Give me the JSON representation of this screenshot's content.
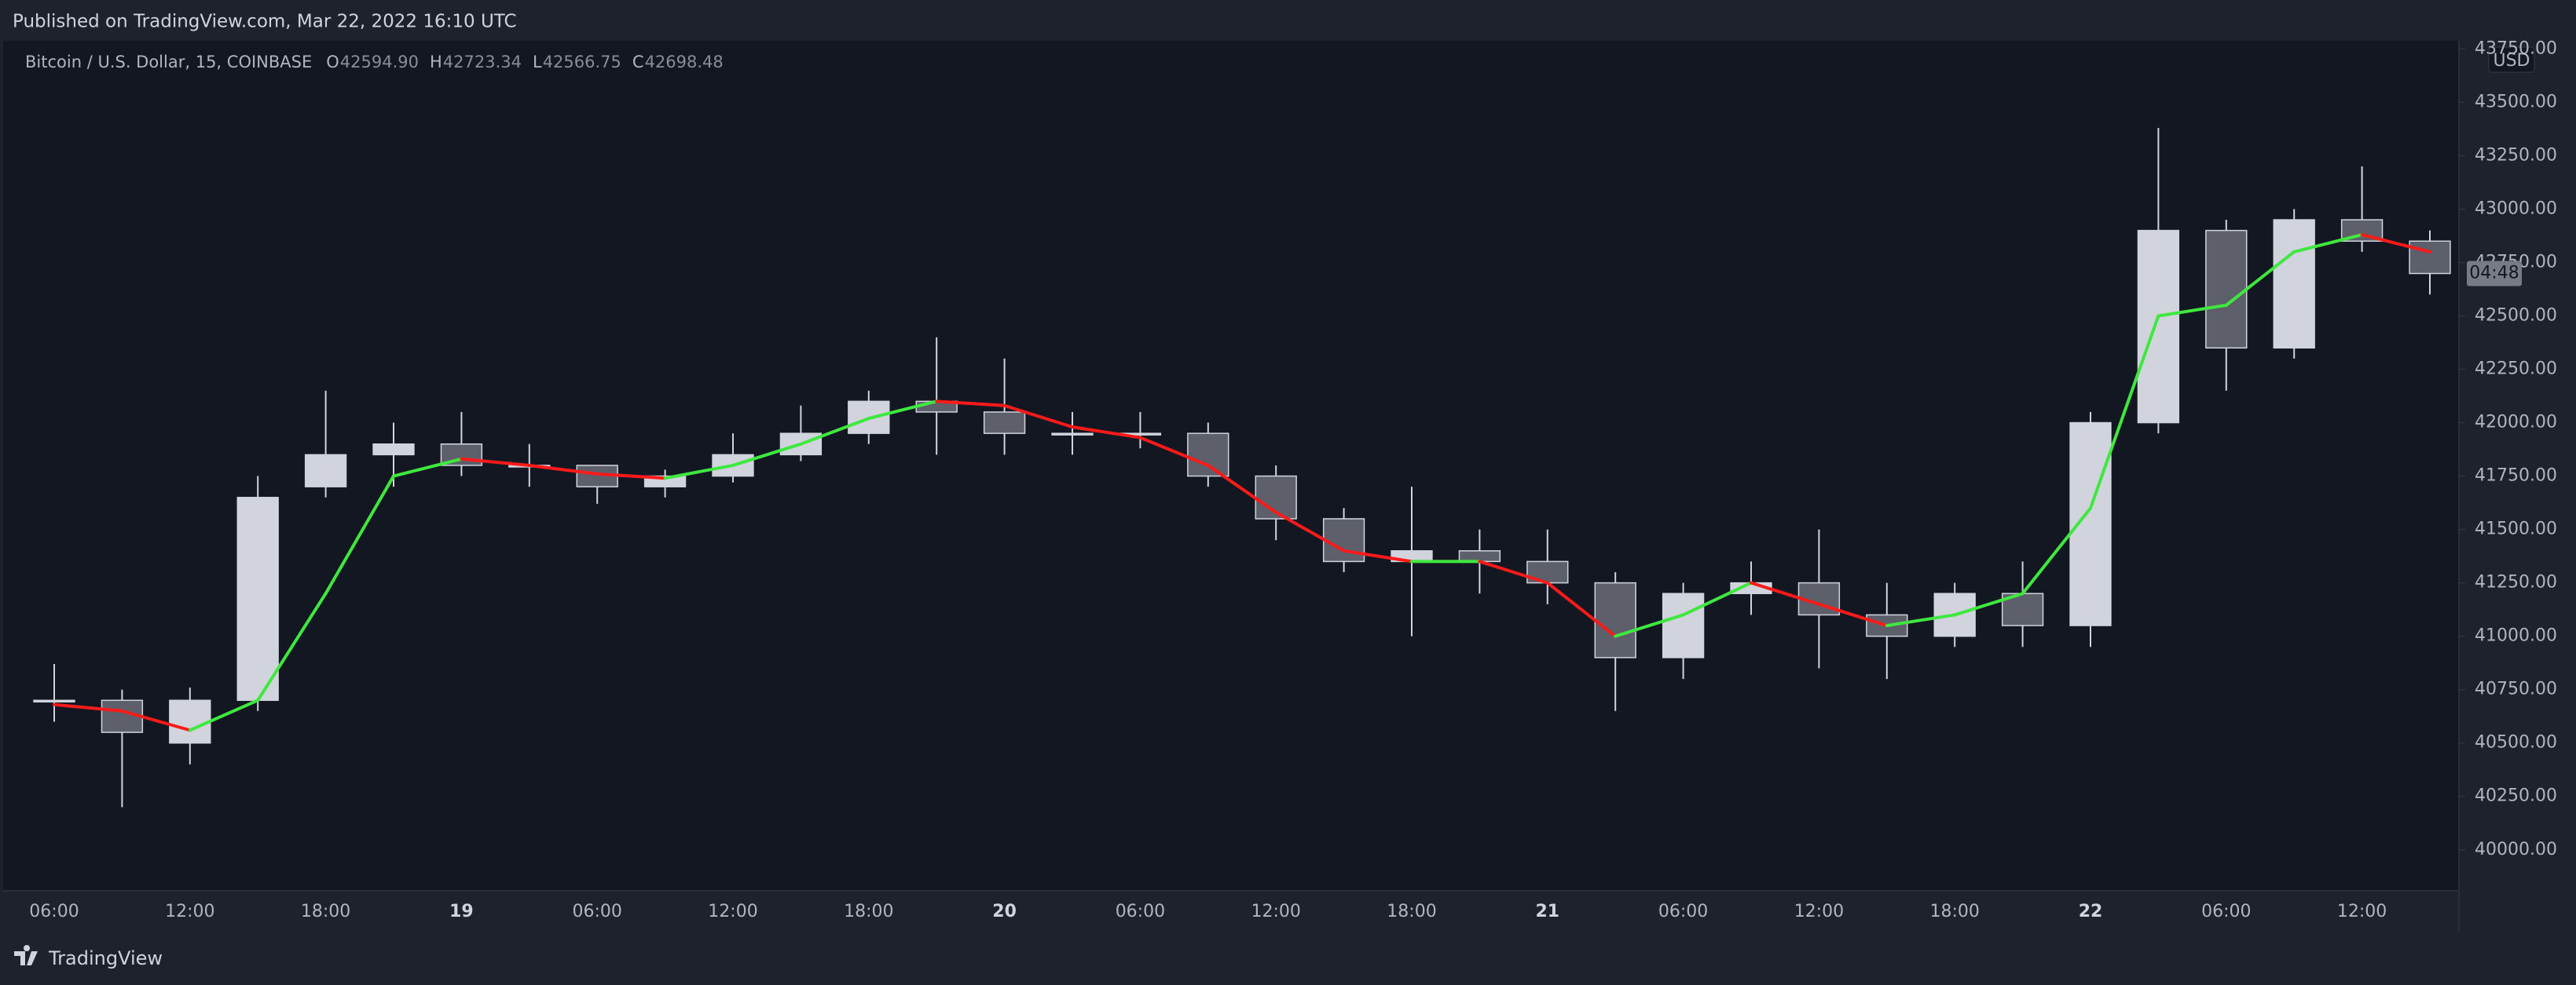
{
  "header": {
    "published": "Published on TradingView.com, Mar 22, 2022 16:10 UTC"
  },
  "legend": {
    "symbol": "Bitcoin / U.S. Dollar, 15, COINBASE",
    "open_label": "O",
    "open": "42594.90",
    "high_label": "H",
    "high": "42723.34",
    "low_label": "L",
    "low": "42566.75",
    "close_label": "C",
    "close": "42698.48"
  },
  "axis": {
    "currency": "USD",
    "countdown": "04:48"
  },
  "footer": {
    "brand": "TradingView"
  },
  "chart_data": {
    "type": "candlestick",
    "categories": [
      "06:00",
      null,
      "12:00",
      null,
      "18:00",
      null,
      "19",
      null,
      "06:00",
      null,
      "12:00",
      null,
      "18:00",
      null,
      "20",
      null,
      "06:00",
      null,
      "12:00",
      null,
      "18:00",
      null,
      "21",
      null,
      "06:00",
      null,
      "12:00",
      null,
      "18:00",
      null,
      "22",
      null,
      "06:00",
      null,
      "12:00",
      null
    ],
    "open": [
      40700,
      40700,
      40500,
      40700,
      41700,
      41850,
      41900,
      41800,
      41800,
      41700,
      41750,
      41850,
      41950,
      42100,
      42050,
      41950,
      41950,
      41950,
      41750,
      41550,
      41350,
      41400,
      41350,
      41250,
      40900,
      41200,
      41250,
      41100,
      41000,
      41200,
      41050,
      42000,
      42900,
      42350,
      42950,
      42850
    ],
    "high": [
      40870,
      40750,
      40760,
      41750,
      42150,
      42000,
      42050,
      41900,
      41800,
      41780,
      41950,
      42080,
      42150,
      42400,
      42300,
      42050,
      42050,
      42000,
      41800,
      41600,
      41700,
      41500,
      41500,
      41300,
      41250,
      41350,
      41500,
      41250,
      41250,
      41350,
      42050,
      43380,
      42950,
      43000,
      43200,
      42900
    ],
    "low": [
      40600,
      40200,
      40400,
      40650,
      41650,
      41700,
      41750,
      41700,
      41620,
      41650,
      41720,
      41820,
      41900,
      41850,
      41850,
      41850,
      41880,
      41700,
      41450,
      41300,
      41000,
      41200,
      41150,
      40650,
      40800,
      41100,
      40850,
      40800,
      40950,
      40950,
      40950,
      41950,
      42150,
      42300,
      42800,
      42600
    ],
    "close": [
      40700,
      40550,
      40700,
      41650,
      41850,
      41900,
      41800,
      41800,
      41700,
      41750,
      41850,
      41950,
      42100,
      42050,
      41950,
      41950,
      41950,
      41750,
      41550,
      41350,
      41400,
      41350,
      41250,
      40900,
      41200,
      41250,
      41100,
      41000,
      41200,
      41050,
      42000,
      42900,
      42350,
      42950,
      42850,
      42698.48
    ],
    "up_color": "#d1d4dc",
    "down_color": "#5d606b",
    "ma": {
      "values": [
        40680,
        40650,
        40560,
        40700,
        41200,
        41750,
        41830,
        41800,
        41760,
        41740,
        41800,
        41900,
        42020,
        42100,
        42080,
        41980,
        41930,
        41800,
        41580,
        41400,
        41350,
        41350,
        41250,
        41000,
        41100,
        41250,
        41150,
        41050,
        41100,
        41200,
        41600,
        42500,
        42550,
        42800,
        42880,
        42800
      ],
      "rising_color": "#3ee83e",
      "falling_color": "#ff1a1a"
    },
    "ylim": [
      39808,
      43788
    ],
    "yticks": [
      {
        "value": 40000,
        "label": "40000.00"
      },
      {
        "value": 40250,
        "label": "40250.00"
      },
      {
        "value": 40500,
        "label": "40500.00"
      },
      {
        "value": 40750,
        "label": "40750.00"
      },
      {
        "value": 41000,
        "label": "41000.00"
      },
      {
        "value": 41250,
        "label": "41250.00"
      },
      {
        "value": 41500,
        "label": "41500.00"
      },
      {
        "value": 41750,
        "label": "41750.00"
      },
      {
        "value": 42000,
        "label": "42000.00"
      },
      {
        "value": 42250,
        "label": "42250.00"
      },
      {
        "value": 42500,
        "label": "42500.00"
      },
      {
        "value": 42750,
        "label": "42750.00"
      },
      {
        "value": 43000,
        "label": "43000.00"
      },
      {
        "value": 43250,
        "label": "43250.00"
      },
      {
        "value": 43500,
        "label": "43500.00"
      },
      {
        "value": 43750,
        "label": "43750.00"
      }
    ]
  }
}
